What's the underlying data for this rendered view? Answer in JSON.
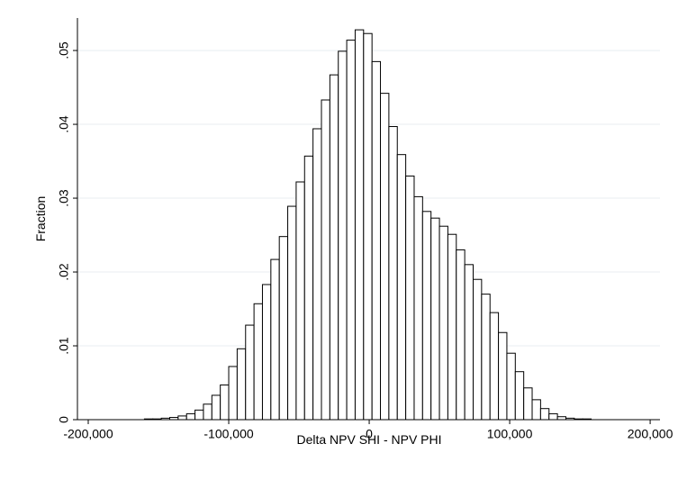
{
  "chart_data": {
    "type": "histogram",
    "xlabel": "Delta NPV SHI - NPV PHI",
    "ylabel": "Fraction",
    "bins": [
      -160000,
      -154000,
      -148000,
      -142000,
      -136000,
      -130000,
      -124000,
      -118000,
      -112000,
      -106000,
      -100000,
      -94000,
      -88000,
      -82000,
      -76000,
      -70000,
      -64000,
      -58000,
      -52000,
      -46000,
      -40000,
      -34000,
      -28000,
      -22000,
      -16000,
      -10000,
      -4000,
      2000,
      8000,
      14000,
      20000,
      26000,
      32000,
      38000,
      44000,
      50000,
      56000,
      62000,
      68000,
      74000,
      80000,
      86000,
      92000,
      98000,
      104000,
      110000,
      116000,
      122000,
      128000,
      134000,
      140000,
      146000,
      152000,
      158000
    ],
    "values": [
      0.0001,
      0.0001,
      0.0002,
      0.0003,
      0.0005,
      0.0008,
      0.0013,
      0.0021,
      0.0033,
      0.0047,
      0.0072,
      0.0096,
      0.0128,
      0.0157,
      0.0183,
      0.0217,
      0.0248,
      0.0289,
      0.0322,
      0.0357,
      0.0394,
      0.0433,
      0.0467,
      0.0499,
      0.0514,
      0.0528,
      0.0523,
      0.0485,
      0.0442,
      0.0397,
      0.0359,
      0.033,
      0.0302,
      0.0282,
      0.0273,
      0.0262,
      0.0251,
      0.023,
      0.021,
      0.019,
      0.017,
      0.0145,
      0.0118,
      0.009,
      0.0065,
      0.0043,
      0.0027,
      0.0015,
      0.0008,
      0.0004,
      0.0002,
      0.0001,
      0.0001
    ],
    "color": "#ffffff",
    "edgecolor": "#000000",
    "xlim": [
      -207700,
      207000
    ],
    "ylim": [
      0,
      0.0544
    ],
    "xticks": [
      {
        "value": -200000,
        "label": "-200,000"
      },
      {
        "value": -100000,
        "label": "-100,000"
      },
      0,
      {
        "value": 100000,
        "label": "100,000"
      },
      {
        "value": 200000,
        "label": "200,000"
      }
    ],
    "yticks": [
      0,
      {
        "value": 0.01,
        "label": ".01"
      },
      {
        "value": 0.02,
        "label": ".02"
      },
      {
        "value": 0.03,
        "label": ".03"
      },
      {
        "value": 0.04,
        "label": ".04"
      },
      {
        "value": 0.05,
        "label": ".05"
      }
    ],
    "grid": true
  }
}
